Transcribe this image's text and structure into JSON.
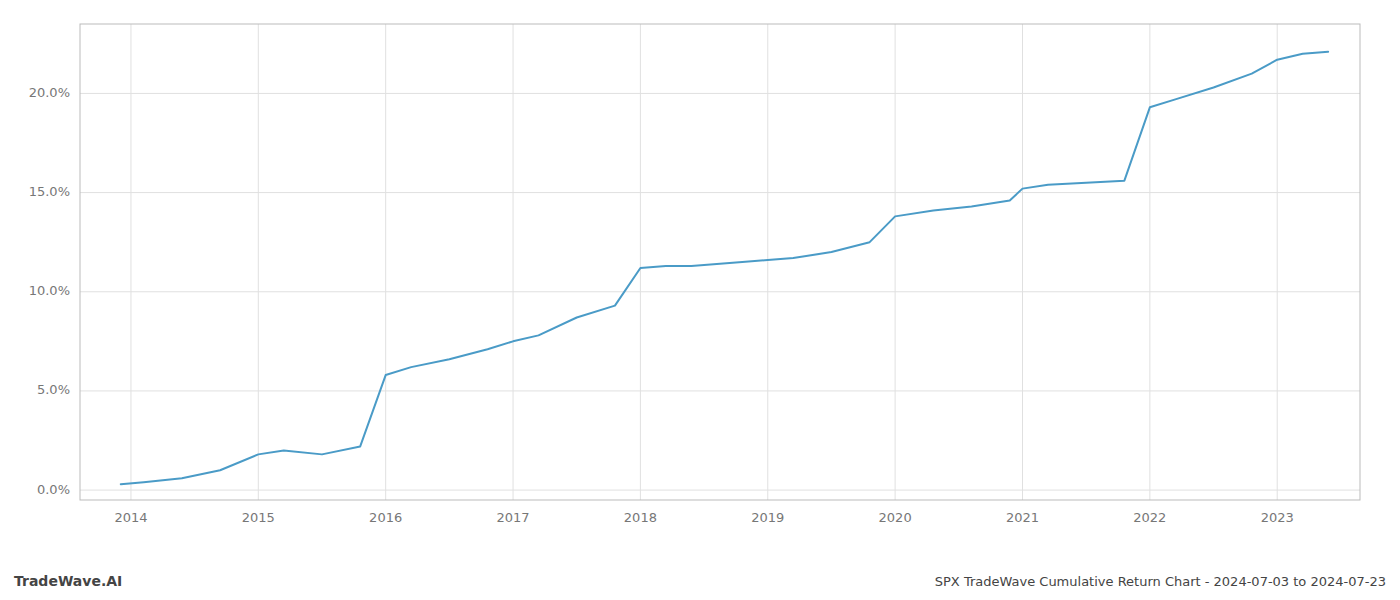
{
  "chart_data": {
    "type": "line",
    "title": "SPX TradeWave Cumulative Return Chart - 2024-07-03 to 2024-07-23",
    "annotations": [
      "TradeWave.AI"
    ],
    "x": [
      2013.92,
      2014.1,
      2014.4,
      2014.7,
      2015.0,
      2015.2,
      2015.5,
      2015.8,
      2016.0,
      2016.2,
      2016.5,
      2016.8,
      2017.0,
      2017.2,
      2017.5,
      2017.8,
      2018.0,
      2018.2,
      2018.4,
      2018.6,
      2018.8,
      2019.0,
      2019.2,
      2019.5,
      2019.8,
      2020.0,
      2020.3,
      2020.6,
      2020.9,
      2021.0,
      2021.2,
      2021.5,
      2021.8,
      2022.0,
      2022.2,
      2022.5,
      2022.8,
      2023.0,
      2023.2,
      2023.4
    ],
    "values": [
      0.003,
      0.004,
      0.006,
      0.01,
      0.018,
      0.02,
      0.018,
      0.022,
      0.058,
      0.062,
      0.066,
      0.071,
      0.075,
      0.078,
      0.087,
      0.093,
      0.112,
      0.113,
      0.113,
      0.114,
      0.115,
      0.116,
      0.117,
      0.12,
      0.125,
      0.138,
      0.141,
      0.143,
      0.146,
      0.152,
      0.154,
      0.155,
      0.156,
      0.193,
      0.197,
      0.203,
      0.21,
      0.217,
      0.22,
      0.221
    ],
    "color": "#4a9bc7",
    "xlim": [
      2013.6,
      2023.65
    ],
    "xticks": [
      2014,
      2015,
      2016,
      2017,
      2018,
      2019,
      2020,
      2021,
      2022,
      2023
    ],
    "ylim": [
      -0.005,
      0.235
    ],
    "yticks": [
      {
        "value": 0.0,
        "label": "0.0%"
      },
      {
        "value": 0.05,
        "label": "5.0%"
      },
      {
        "value": 0.1,
        "label": "10.0%"
      },
      {
        "value": 0.15,
        "label": "15.0%"
      },
      {
        "value": 0.2,
        "label": "20.0%"
      }
    ],
    "grid": true
  }
}
